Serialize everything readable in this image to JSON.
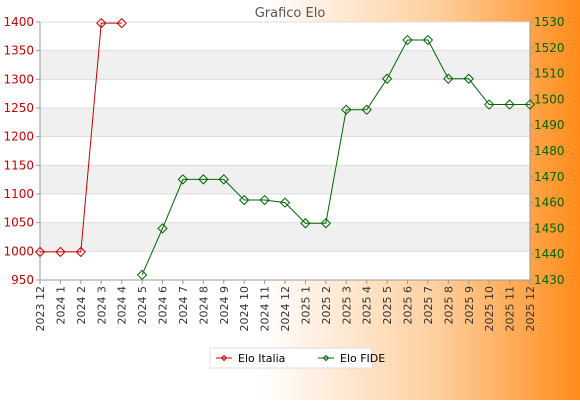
{
  "chart_data": {
    "type": "line",
    "title": "Grafico Elo",
    "categories": [
      "2023 12",
      "2024 1",
      "2024 2",
      "2024 3",
      "2024 4",
      "2024 5",
      "2024 6",
      "2024 7",
      "2024 8",
      "2024 9",
      "2024 10",
      "2024 11",
      "2024 12",
      "2025 1",
      "2025 2",
      "2025 3",
      "2025 4",
      "2025 5",
      "2025 6",
      "2025 7",
      "2025 8",
      "2025 9",
      "2025 10",
      "2025 11",
      "2025 12"
    ],
    "y_left": {
      "min": 950,
      "max": 1400,
      "ticks": [
        950,
        1000,
        1050,
        1100,
        1150,
        1200,
        1250,
        1300,
        1350,
        1400
      ],
      "color": "#cc0000"
    },
    "y_right": {
      "min": 1430,
      "max": 1530,
      "ticks": [
        1430,
        1440,
        1450,
        1460,
        1470,
        1480,
        1490,
        1500,
        1510,
        1520,
        1530
      ],
      "color": "#006600"
    },
    "grid": true,
    "legend": "bottom-center",
    "series": [
      {
        "name": "Elo Italia",
        "axis": "left",
        "color": "#cc0000",
        "values": [
          999,
          999,
          999,
          1398,
          1398,
          null,
          null,
          null,
          null,
          null,
          null,
          null,
          null,
          null,
          null,
          null,
          null,
          null,
          null,
          null,
          null,
          null,
          null,
          null,
          null
        ]
      },
      {
        "name": "Elo FIDE",
        "axis": "right",
        "color": "#006600",
        "values": [
          null,
          null,
          null,
          null,
          null,
          1432,
          1450,
          1469,
          1469,
          1469,
          1461,
          1461,
          1460,
          1452,
          1452,
          1496,
          1496,
          1508,
          1523,
          1523,
          1508,
          1508,
          1498,
          1498,
          1498
        ]
      }
    ]
  }
}
